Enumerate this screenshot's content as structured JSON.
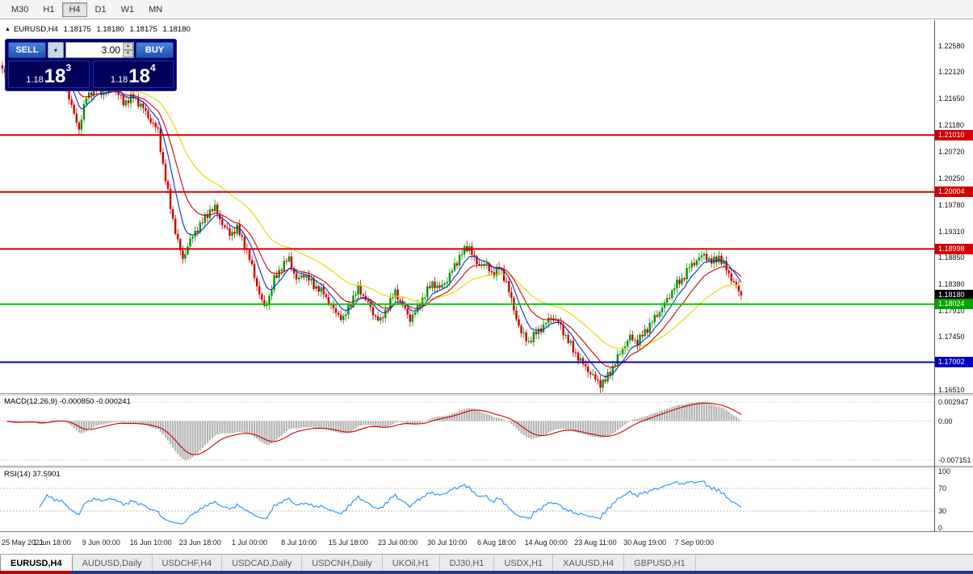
{
  "icons": {
    "collapse": "▲",
    "dropdown": "▾",
    "spinner_up": "▲",
    "spinner_down": "▼"
  },
  "toolbar": {
    "timeframes": [
      {
        "label": "M30",
        "active": false
      },
      {
        "label": "H1",
        "active": false
      },
      {
        "label": "H4",
        "active": true
      },
      {
        "label": "D1",
        "active": false
      },
      {
        "label": "W1",
        "active": false
      },
      {
        "label": "MN",
        "active": false
      }
    ]
  },
  "chart": {
    "header": {
      "title": "EURUSD,H4",
      "open": "1.18175",
      "high": "1.18180",
      "low": "1.18175",
      "close": "1.18180"
    },
    "trade_panel": {
      "sell_label": "SELL",
      "buy_label": "BUY",
      "lot_value": "3.00",
      "bid": {
        "prefix": "1.18",
        "big": "18",
        "sup": "3"
      },
      "ask": {
        "prefix": "1.18",
        "big": "18",
        "sup": "4"
      }
    },
    "price_axis": [
      "1.22580",
      "1.22120",
      "1.21650",
      "1.21180",
      "1.20720",
      "1.20250",
      "1.19780",
      "1.19310",
      "1.18850",
      "1.18380",
      "1.17910",
      "1.17450",
      "1.16980",
      "1.16510"
    ],
    "price_tags": [
      {
        "label": "1.21010",
        "price": 1.2101,
        "bg": "#d20000"
      },
      {
        "label": "1.20004",
        "price": 1.20004,
        "bg": "#d20000"
      },
      {
        "label": "1.18998",
        "price": 1.18998,
        "bg": "#d20000"
      },
      {
        "label": "1.18180",
        "price": 1.1818,
        "bg": "#000000"
      },
      {
        "label": "1.18024",
        "price": 1.18024,
        "bg": "#00a400"
      },
      {
        "label": "1.17002",
        "price": 1.17002,
        "bg": "#0000c0"
      }
    ]
  },
  "indicators": {
    "macd": {
      "label": "MACD(12,26,9) -0.000850 -0.000241",
      "axis": [
        "0.002947",
        "0.00",
        "-0.007151"
      ]
    },
    "rsi": {
      "label": "RSI(14) 37.5901",
      "axis": [
        "100",
        "70",
        "30",
        "0"
      ],
      "levels": [
        70,
        30
      ]
    }
  },
  "time_axis": [
    "25 May 2021",
    "1 Jun 18:00",
    "9 Jun 00:00",
    "16 Jun 10:00",
    "23 Jun 18:00",
    "1 Jul 00:00",
    "8 Jul 10:00",
    "15 Jul 18:00",
    "23 Jul 00:00",
    "30 Jul 10:00",
    "6 Aug 18:00",
    "14 Aug 00:00",
    "23 Aug 11:00",
    "30 Aug 19:00",
    "7 Sep 00:00"
  ],
  "tabs": [
    {
      "label": "EURUSD,H4",
      "active": true
    },
    {
      "label": "AUDUSD,Daily",
      "active": false
    },
    {
      "label": "USDCHF,H4",
      "active": false
    },
    {
      "label": "USDCAD,Daily",
      "active": false
    },
    {
      "label": "USDCNH,Daily",
      "active": false
    },
    {
      "label": "UKOil,H1",
      "active": false
    },
    {
      "label": "DJ30,H1",
      "active": false
    },
    {
      "label": "USDX,H1",
      "active": false
    },
    {
      "label": "XAUUSD,H4",
      "active": false
    },
    {
      "label": "GBPUSD,H1",
      "active": false
    }
  ],
  "chart_data": {
    "type": "candlestick",
    "symbol": "EURUSD",
    "timeframe": "H4",
    "title": "EURUSD,H4",
    "ylim": [
      1.16455,
      1.23035
    ],
    "n_candles": 300,
    "x_unit": "candle_index",
    "close_waypoints": [
      [
        0,
        1.2215
      ],
      [
        4,
        1.2196
      ],
      [
        8,
        1.2222
      ],
      [
        12,
        1.2202
      ],
      [
        15,
        1.2186
      ],
      [
        18,
        1.2232
      ],
      [
        21,
        1.2218
      ],
      [
        25,
        1.2202
      ],
      [
        28,
        1.215
      ],
      [
        31,
        1.2112
      ],
      [
        34,
        1.2168
      ],
      [
        37,
        1.2184
      ],
      [
        41,
        1.2176
      ],
      [
        45,
        1.2186
      ],
      [
        49,
        1.2158
      ],
      [
        53,
        1.2168
      ],
      [
        57,
        1.2148
      ],
      [
        60,
        1.2126
      ],
      [
        63,
        1.2108
      ],
      [
        65,
        1.2048
      ],
      [
        67,
        1.1998
      ],
      [
        69,
        1.1952
      ],
      [
        71,
        1.1912
      ],
      [
        73,
        1.1882
      ],
      [
        75,
        1.1906
      ],
      [
        78,
        1.193
      ],
      [
        81,
        1.1948
      ],
      [
        84,
        1.1968
      ],
      [
        86,
        1.1972
      ],
      [
        89,
        1.1944
      ],
      [
        92,
        1.1926
      ],
      [
        95,
        1.1936
      ],
      [
        98,
        1.1908
      ],
      [
        101,
        1.1868
      ],
      [
        104,
        1.182
      ],
      [
        106,
        1.1796
      ],
      [
        108,
        1.1816
      ],
      [
        110,
        1.1846
      ],
      [
        113,
        1.1868
      ],
      [
        116,
        1.1884
      ],
      [
        119,
        1.1844
      ],
      [
        122,
        1.1856
      ],
      [
        126,
        1.1836
      ],
      [
        130,
        1.1822
      ],
      [
        134,
        1.1792
      ],
      [
        138,
        1.1776
      ],
      [
        141,
        1.1806
      ],
      [
        144,
        1.183
      ],
      [
        147,
        1.1812
      ],
      [
        150,
        1.1786
      ],
      [
        153,
        1.1772
      ],
      [
        156,
        1.18
      ],
      [
        159,
        1.1824
      ],
      [
        162,
        1.18
      ],
      [
        165,
        1.1776
      ],
      [
        168,
        1.1796
      ],
      [
        171,
        1.182
      ],
      [
        174,
        1.184
      ],
      [
        177,
        1.183
      ],
      [
        180,
        1.1846
      ],
      [
        183,
        1.187
      ],
      [
        186,
        1.1894
      ],
      [
        189,
        1.1904
      ],
      [
        192,
        1.1872
      ],
      [
        195,
        1.1876
      ],
      [
        198,
        1.1856
      ],
      [
        201,
        1.1866
      ],
      [
        204,
        1.1842
      ],
      [
        207,
        1.1792
      ],
      [
        210,
        1.1752
      ],
      [
        213,
        1.1736
      ],
      [
        216,
        1.1752
      ],
      [
        219,
        1.1764
      ],
      [
        222,
        1.178
      ],
      [
        225,
        1.177
      ],
      [
        228,
        1.1746
      ],
      [
        231,
        1.1722
      ],
      [
        234,
        1.1702
      ],
      [
        237,
        1.1686
      ],
      [
        240,
        1.167
      ],
      [
        242,
        1.1662
      ],
      [
        244,
        1.1668
      ],
      [
        246,
        1.1684
      ],
      [
        248,
        1.17
      ],
      [
        251,
        1.1724
      ],
      [
        254,
        1.1744
      ],
      [
        257,
        1.1736
      ],
      [
        260,
        1.1754
      ],
      [
        263,
        1.1772
      ],
      [
        266,
        1.179
      ],
      [
        269,
        1.181
      ],
      [
        272,
        1.1834
      ],
      [
        275,
        1.1846
      ],
      [
        278,
        1.1868
      ],
      [
        281,
        1.188
      ],
      [
        284,
        1.189
      ],
      [
        287,
        1.1876
      ],
      [
        290,
        1.1886
      ],
      [
        293,
        1.1864
      ],
      [
        296,
        1.184
      ],
      [
        299,
        1.1818
      ]
    ],
    "hlines": [
      {
        "price": 1.2101,
        "color": "#d20000",
        "width": 2
      },
      {
        "price": 1.20004,
        "color": "#d20000",
        "width": 2
      },
      {
        "price": 1.18998,
        "color": "#d20000",
        "width": 2
      },
      {
        "price": 1.18024,
        "color": "#00c800",
        "width": 2
      },
      {
        "price": 1.17002,
        "color": "#0000c0",
        "width": 2
      }
    ],
    "moving_averages": [
      {
        "type": "ema",
        "period": 8,
        "color": "#0033cc"
      },
      {
        "type": "ema",
        "period": 17,
        "color": "#cc0000"
      },
      {
        "type": "ema",
        "period": 40,
        "color": "#ecd800"
      }
    ],
    "macd": {
      "fast": 12,
      "slow": 26,
      "signal": 9,
      "main_value": -0.00085,
      "signal_value": -0.000241,
      "axis_max": 0.002947,
      "axis_min": -0.007151,
      "hist_color": "#b4b4b4",
      "signal_color": "#cc0000"
    },
    "rsi": {
      "period": 14,
      "value": 37.5901,
      "levels": [
        70,
        30
      ],
      "color": "#1e90ff",
      "range": [
        0,
        100
      ]
    },
    "colors": {
      "up": "#009600",
      "down": "#c80000"
    }
  }
}
